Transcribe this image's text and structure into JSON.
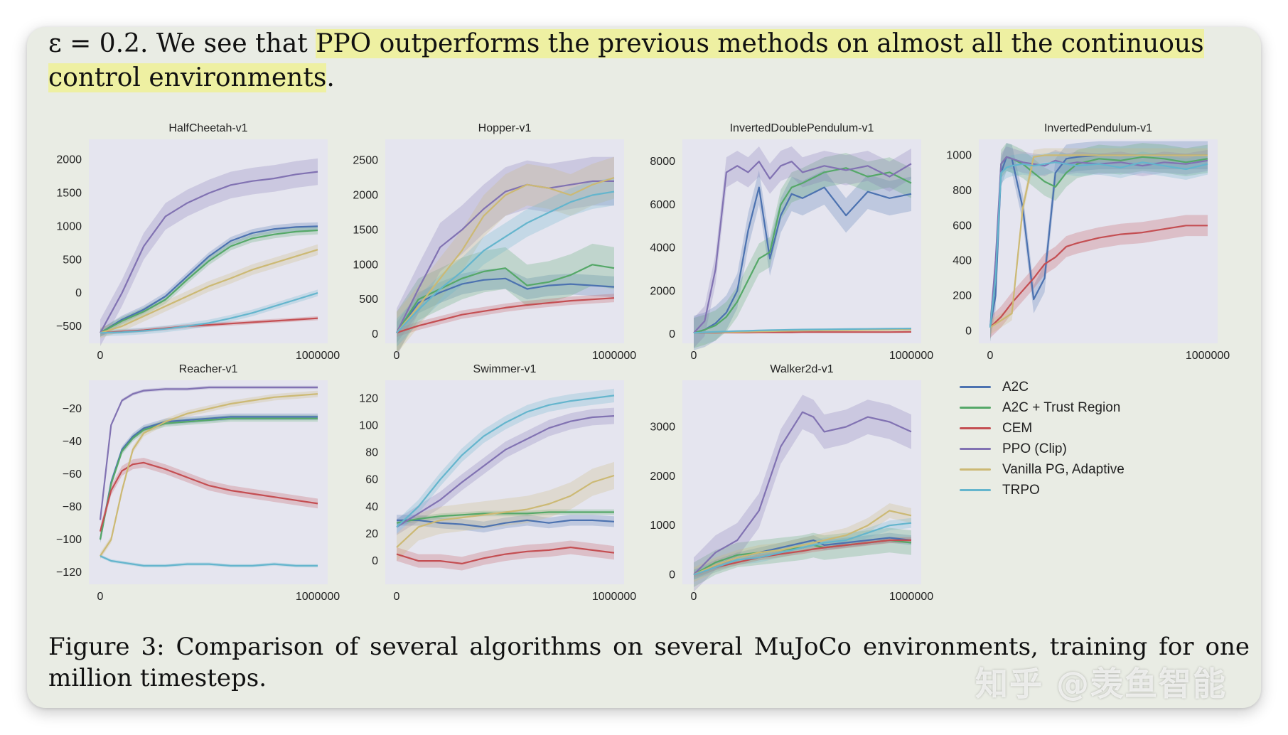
{
  "text": {
    "intro_plain": "ε = 0.2.  We see that ",
    "intro_highlight": "PPO outperforms the previous methods on almost all the continuous control environments",
    "intro_end": ".",
    "caption": "Figure 3:  Comparison of several algorithms on several MuJoCo environments, training for one million timesteps."
  },
  "watermark": "知乎 @羡鱼智能",
  "colors": {
    "A2C": "#4c72b0",
    "A2C + Trust Region": "#55a868",
    "CEM": "#c44e52",
    "PPO (Clip)": "#8172b2",
    "Vanilla PG, Adaptive": "#ccb974",
    "TRPO": "#64b5cd",
    "plot_bg": "#e5e5ef"
  },
  "legend": [
    "A2C",
    "A2C + Trust Region",
    "CEM",
    "PPO (Clip)",
    "Vanilla PG, Adaptive",
    "TRPO"
  ],
  "chart_data": [
    {
      "type": "line",
      "title": "HalfCheetah-v1",
      "xlim": [
        0,
        1000000
      ],
      "ylim": [
        -650,
        2200
      ],
      "xticks": [
        0,
        1000000
      ],
      "xtick_labels": [
        "0",
        "1000000"
      ],
      "yticks": [
        -500,
        0,
        500,
        1000,
        1500,
        2000
      ],
      "ytick_labels": [
        "−500",
        "0",
        "500",
        "1000",
        "1500",
        "2000"
      ],
      "x": [
        0,
        100000,
        200000,
        300000,
        400000,
        500000,
        600000,
        700000,
        800000,
        900000,
        1000000
      ],
      "series": [
        {
          "name": "A2C",
          "values": [
            -600,
            -400,
            -250,
            -50,
            250,
            550,
            780,
            900,
            960,
            990,
            1000
          ],
          "band": 60
        },
        {
          "name": "A2C + Trust Region",
          "values": [
            -600,
            -420,
            -280,
            -100,
            200,
            480,
            700,
            820,
            880,
            920,
            940
          ],
          "band": 60
        },
        {
          "name": "CEM",
          "values": [
            -600,
            -580,
            -560,
            -530,
            -500,
            -480,
            -460,
            -440,
            -420,
            -400,
            -380
          ],
          "band": 30
        },
        {
          "name": "PPO (Clip)",
          "values": [
            -600,
            0,
            700,
            1150,
            1350,
            1500,
            1620,
            1680,
            1720,
            1780,
            1820
          ],
          "band": 200
        },
        {
          "name": "Vanilla PG, Adaptive",
          "values": [
            -600,
            -500,
            -350,
            -200,
            -50,
            100,
            220,
            350,
            450,
            550,
            650
          ],
          "band": 80
        },
        {
          "name": "TRPO",
          "values": [
            -600,
            -590,
            -570,
            -540,
            -500,
            -450,
            -380,
            -300,
            -200,
            -100,
            0
          ],
          "band": 50
        }
      ]
    },
    {
      "type": "line",
      "title": "Hopper-v1",
      "xlim": [
        0,
        1000000
      ],
      "ylim": [
        -30,
        2700
      ],
      "xticks": [
        0,
        1000000
      ],
      "xtick_labels": [
        "0",
        "1000000"
      ],
      "yticks": [
        0,
        500,
        1000,
        1500,
        2000,
        2500
      ],
      "ytick_labels": [
        "0",
        "500",
        "1000",
        "1500",
        "2000",
        "2500"
      ],
      "x": [
        0,
        100000,
        200000,
        300000,
        400000,
        500000,
        600000,
        700000,
        800000,
        900000,
        1000000
      ],
      "series": [
        {
          "name": "A2C",
          "values": [
            20,
            450,
            600,
            720,
            780,
            800,
            650,
            700,
            720,
            700,
            680
          ],
          "band": 150
        },
        {
          "name": "A2C + Trust Region",
          "values": [
            20,
            500,
            650,
            800,
            900,
            950,
            700,
            750,
            850,
            1000,
            950
          ],
          "band": 300
        },
        {
          "name": "CEM",
          "values": [
            20,
            120,
            200,
            280,
            330,
            380,
            420,
            450,
            480,
            500,
            520
          ],
          "band": 60
        },
        {
          "name": "PPO (Clip)",
          "values": [
            20,
            650,
            1250,
            1500,
            1800,
            2050,
            2150,
            2100,
            2150,
            2200,
            2200
          ],
          "band": 350
        },
        {
          "name": "Vanilla PG, Adaptive",
          "values": [
            20,
            400,
            800,
            1200,
            1700,
            2000,
            2150,
            2100,
            2000,
            2150,
            2250
          ],
          "band": 300
        },
        {
          "name": "TRPO",
          "values": [
            20,
            350,
            650,
            900,
            1200,
            1400,
            1600,
            1750,
            1900,
            2000,
            2050
          ],
          "band": 200
        }
      ]
    },
    {
      "type": "line",
      "title": "InvertedDoublePendulum-v1",
      "xlim": [
        0,
        1000000
      ],
      "ylim": [
        -100,
        8700
      ],
      "xticks": [
        0,
        1000000
      ],
      "xtick_labels": [
        "0",
        "1000000"
      ],
      "yticks": [
        0,
        2000,
        4000,
        6000,
        8000
      ],
      "ytick_labels": [
        "0",
        "2000",
        "4000",
        "6000",
        "8000"
      ],
      "x": [
        0,
        50000,
        100000,
        150000,
        200000,
        250000,
        300000,
        350000,
        400000,
        450000,
        500000,
        600000,
        700000,
        800000,
        900000,
        1000000
      ],
      "series": [
        {
          "name": "A2C",
          "values": [
            50,
            200,
            500,
            1000,
            2000,
            4800,
            6800,
            3500,
            5500,
            6500,
            6300,
            6800,
            5500,
            6600,
            6300,
            6500
          ],
          "band": 800
        },
        {
          "name": "A2C + Trust Region",
          "values": [
            50,
            200,
            400,
            800,
            1500,
            2500,
            3500,
            3800,
            6000,
            6800,
            7000,
            7500,
            7700,
            7300,
            7500,
            7000
          ],
          "band": 700
        },
        {
          "name": "CEM",
          "values": [
            50,
            60,
            60,
            70,
            70,
            70,
            80,
            80,
            80,
            80,
            90,
            90,
            90,
            90,
            90,
            100
          ],
          "band": 30
        },
        {
          "name": "PPO (Clip)",
          "values": [
            50,
            600,
            3000,
            7500,
            7800,
            7500,
            8000,
            7200,
            7800,
            8000,
            7500,
            7800,
            7600,
            7800,
            7300,
            7900
          ],
          "band": 700
        },
        {
          "name": "Vanilla PG, Adaptive",
          "values": [
            50,
            70,
            80,
            90,
            100,
            110,
            120,
            130,
            140,
            150,
            160,
            170,
            180,
            190,
            200,
            210
          ],
          "band": 40
        },
        {
          "name": "TRPO",
          "values": [
            50,
            80,
            100,
            120,
            140,
            150,
            170,
            180,
            190,
            200,
            210,
            220,
            230,
            240,
            250,
            260
          ],
          "band": 40
        }
      ]
    },
    {
      "type": "line",
      "title": "InvertedPendulum-v1",
      "xlim": [
        0,
        1000000
      ],
      "ylim": [
        -30,
        1050
      ],
      "xticks": [
        0,
        1000000
      ],
      "xtick_labels": [
        "0",
        "1000000"
      ],
      "yticks": [
        0,
        200,
        400,
        600,
        800,
        1000
      ],
      "ytick_labels": [
        "0",
        "200",
        "400",
        "600",
        "800",
        "1000"
      ],
      "x": [
        0,
        25000,
        50000,
        75000,
        100000,
        150000,
        200000,
        250000,
        300000,
        350000,
        400000,
        500000,
        600000,
        700000,
        800000,
        900000,
        1000000
      ],
      "series": [
        {
          "name": "A2C",
          "values": [
            20,
            200,
            900,
            990,
            980,
            700,
            180,
            300,
            900,
            980,
            990,
            1000,
            1000,
            1000,
            1000,
            1000,
            1000
          ],
          "band": 80
        },
        {
          "name": "A2C + Trust Region",
          "values": [
            20,
            300,
            950,
            990,
            980,
            950,
            900,
            850,
            820,
            900,
            950,
            980,
            970,
            990,
            980,
            960,
            980
          ],
          "band": 80
        },
        {
          "name": "CEM",
          "values": [
            20,
            50,
            80,
            120,
            160,
            230,
            300,
            380,
            420,
            480,
            500,
            530,
            550,
            560,
            580,
            600,
            600
          ],
          "band": 60
        },
        {
          "name": "PPO (Clip)",
          "values": [
            20,
            400,
            950,
            990,
            980,
            960,
            950,
            940,
            970,
            950,
            960,
            950,
            960,
            940,
            960,
            950,
            970
          ],
          "band": 60
        },
        {
          "name": "Vanilla PG, Adaptive",
          "values": [
            20,
            40,
            60,
            80,
            100,
            700,
            990,
            1000,
            1000,
            1000,
            1000,
            1000,
            1000,
            1000,
            1000,
            1000,
            1000
          ],
          "band": 40
        },
        {
          "name": "TRPO",
          "values": [
            20,
            300,
            900,
            930,
            940,
            950,
            940,
            950,
            960,
            950,
            940,
            950,
            930,
            960,
            940,
            920,
            950
          ],
          "band": 60
        }
      ]
    },
    {
      "type": "line",
      "title": "Reacher-v1",
      "xlim": [
        0,
        1000000
      ],
      "ylim": [
        -123,
        -7
      ],
      "xticks": [
        0,
        1000000
      ],
      "xtick_labels": [
        "0",
        "1000000"
      ],
      "yticks": [
        -120,
        -100,
        -80,
        -60,
        -40,
        -20
      ],
      "ytick_labels": [
        "−120",
        "−100",
        "−80",
        "−60",
        "−40",
        "−20"
      ],
      "x": [
        0,
        50000,
        100000,
        150000,
        200000,
        300000,
        400000,
        500000,
        600000,
        700000,
        800000,
        900000,
        1000000
      ],
      "series": [
        {
          "name": "A2C",
          "values": [
            -100,
            -65,
            -45,
            -37,
            -32,
            -28,
            -27,
            -26,
            -25,
            -25,
            -25,
            -25,
            -25
          ],
          "band": 2
        },
        {
          "name": "A2C + Trust Region",
          "values": [
            -100,
            -66,
            -46,
            -38,
            -33,
            -29,
            -28,
            -27,
            -26,
            -26,
            -26,
            -26,
            -26
          ],
          "band": 2
        },
        {
          "name": "CEM",
          "values": [
            -95,
            -70,
            -58,
            -54,
            -53,
            -57,
            -62,
            -67,
            -70,
            -72,
            -74,
            -76,
            -78
          ],
          "band": 3
        },
        {
          "name": "PPO (Clip)",
          "values": [
            -88,
            -30,
            -15,
            -11,
            -9,
            -8,
            -8,
            -7,
            -7,
            -7,
            -7,
            -7,
            -7
          ],
          "band": 1
        },
        {
          "name": "Vanilla PG, Adaptive",
          "values": [
            -110,
            -100,
            -70,
            -45,
            -35,
            -28,
            -23,
            -20,
            -17,
            -15,
            -13,
            -12,
            -11
          ],
          "band": 2
        },
        {
          "name": "TRPO",
          "values": [
            -110,
            -113,
            -114,
            -115,
            -116,
            -116,
            -115,
            -115,
            -116,
            -116,
            -115,
            -116,
            -116
          ],
          "band": 1
        }
      ]
    },
    {
      "type": "line",
      "title": "Swimmer-v1",
      "xlim": [
        0,
        1000000
      ],
      "ylim": [
        -12,
        128
      ],
      "xticks": [
        0,
        1000000
      ],
      "xtick_labels": [
        "0",
        "1000000"
      ],
      "yticks": [
        0,
        20,
        40,
        60,
        80,
        100,
        120
      ],
      "ytick_labels": [
        "0",
        "20",
        "40",
        "60",
        "80",
        "100",
        "120"
      ],
      "x": [
        0,
        100000,
        200000,
        300000,
        400000,
        500000,
        600000,
        700000,
        800000,
        900000,
        1000000
      ],
      "series": [
        {
          "name": "A2C",
          "values": [
            30,
            30,
            28,
            27,
            25,
            28,
            30,
            28,
            30,
            30,
            29
          ],
          "band": 4
        },
        {
          "name": "A2C + Trust Region",
          "values": [
            28,
            31,
            33,
            34,
            35,
            35,
            35,
            36,
            36,
            36,
            36
          ],
          "band": 2
        },
        {
          "name": "CEM",
          "values": [
            5,
            0,
            0,
            -2,
            2,
            5,
            7,
            8,
            10,
            8,
            6
          ],
          "band": 5
        },
        {
          "name": "PPO (Clip)",
          "values": [
            25,
            35,
            45,
            58,
            70,
            82,
            90,
            98,
            103,
            106,
            107
          ],
          "band": 6
        },
        {
          "name": "Vanilla PG, Adaptive",
          "values": [
            10,
            25,
            30,
            32,
            34,
            36,
            38,
            42,
            48,
            58,
            63
          ],
          "band": 10
        },
        {
          "name": "TRPO",
          "values": [
            25,
            40,
            60,
            78,
            92,
            102,
            110,
            115,
            118,
            120,
            122
          ],
          "band": 5
        }
      ]
    },
    {
      "type": "line",
      "title": "Walker2d-v1",
      "xlim": [
        0,
        1000000
      ],
      "ylim": [
        -50,
        3800
      ],
      "xticks": [
        0,
        1000000
      ],
      "xtick_labels": [
        "0",
        "1000000"
      ],
      "yticks": [
        0,
        1000,
        2000,
        3000
      ],
      "ytick_labels": [
        "0",
        "1000",
        "2000",
        "3000"
      ],
      "x": [
        0,
        100000,
        200000,
        300000,
        400000,
        500000,
        550000,
        600000,
        700000,
        800000,
        900000,
        1000000
      ],
      "series": [
        {
          "name": "A2C",
          "values": [
            0,
            200,
            350,
            450,
            550,
            650,
            700,
            600,
            650,
            700,
            750,
            700
          ],
          "band": 100
        },
        {
          "name": "A2C + Trust Region",
          "values": [
            0,
            250,
            400,
            450,
            500,
            550,
            600,
            550,
            600,
            650,
            700,
            650
          ],
          "band": 250
        },
        {
          "name": "CEM",
          "values": [
            0,
            150,
            250,
            350,
            420,
            480,
            520,
            550,
            600,
            650,
            700,
            700
          ],
          "band": 60
        },
        {
          "name": "PPO (Clip)",
          "values": [
            0,
            450,
            700,
            1300,
            2600,
            3300,
            3200,
            2900,
            3000,
            3200,
            3100,
            2900
          ],
          "band": 350
        },
        {
          "name": "Vanilla PG, Adaptive",
          "values": [
            0,
            200,
            350,
            450,
            500,
            600,
            650,
            700,
            800,
            1000,
            1300,
            1200
          ],
          "band": 150
        },
        {
          "name": "TRPO",
          "values": [
            0,
            150,
            300,
            350,
            450,
            550,
            600,
            650,
            700,
            850,
            1000,
            1050
          ],
          "band": 100
        }
      ]
    }
  ]
}
